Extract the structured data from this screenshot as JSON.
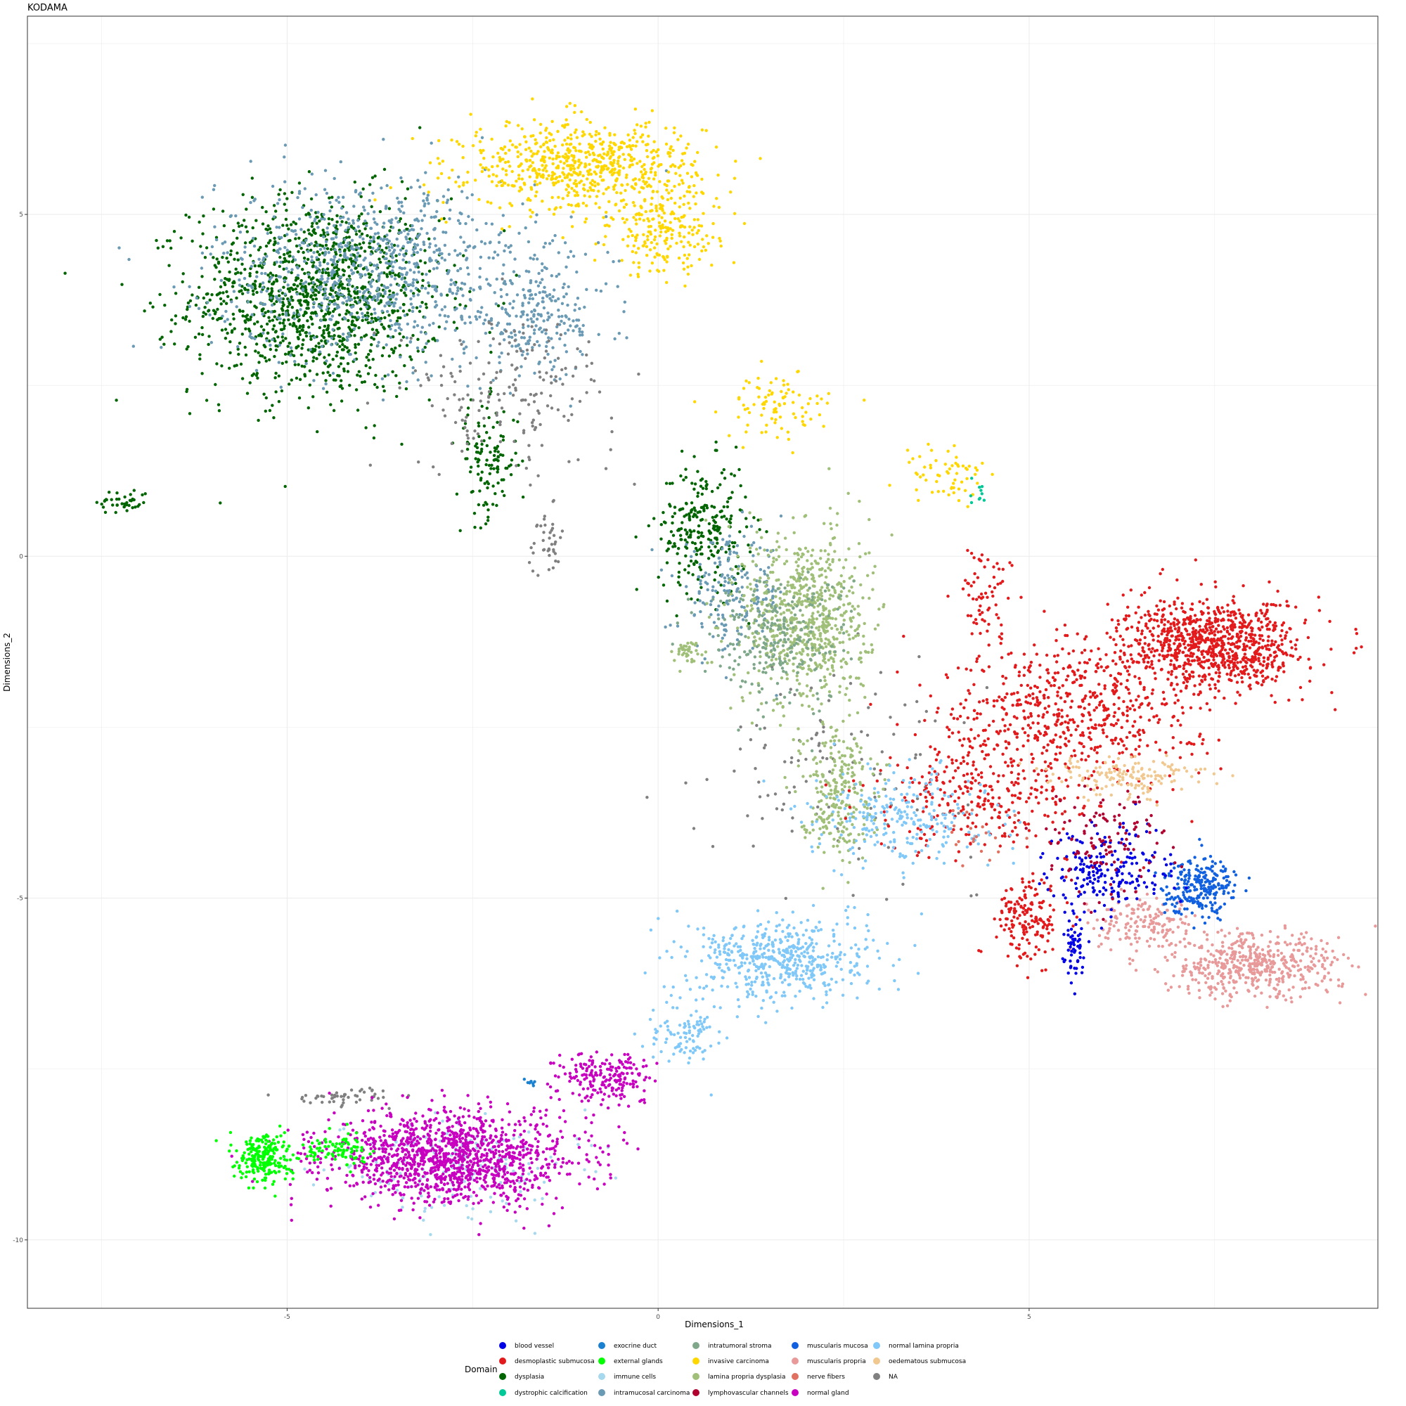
{
  "chart_data": {
    "type": "scatter",
    "title": "KODAMA",
    "xlabel": "Dimensions_1",
    "ylabel": "Dimensions_2",
    "xlim": [
      -8.5,
      9.7
    ],
    "ylim": [
      -11.0,
      7.9
    ],
    "xticks": [
      {
        "v": -5,
        "label": "-5"
      },
      {
        "v": 0,
        "label": "0"
      },
      {
        "v": 5,
        "label": "5"
      }
    ],
    "yticks": [
      {
        "v": 5,
        "label": "5"
      },
      {
        "v": 0,
        "label": "0"
      },
      {
        "v": -5,
        "label": "-5"
      },
      {
        "v": -10,
        "label": "-10"
      }
    ],
    "grid": true,
    "legend": {
      "title": "Domain",
      "placement": "bottom",
      "entries": [
        {
          "label": "blood vessel",
          "color": "#0000e6"
        },
        {
          "label": "desmoplastic submucosa",
          "color": "#e31a1c"
        },
        {
          "label": "dysplasia",
          "color": "#006400"
        },
        {
          "label": "dystrophic calcification",
          "color": "#00c896"
        },
        {
          "label": "exocrine duct",
          "color": "#1a80d0"
        },
        {
          "label": "external glands",
          "color": "#00ff00"
        },
        {
          "label": "immune cells",
          "color": "#a6d8ee"
        },
        {
          "label": "intramucosal carcinoma",
          "color": "#6a9ab4"
        },
        {
          "label": "intratumoral stroma",
          "color": "#7fa88a"
        },
        {
          "label": "invasive carcinoma",
          "color": "#ffd700"
        },
        {
          "label": "lamina propria dysplasia",
          "color": "#a0bf78"
        },
        {
          "label": "lymphovascular channels",
          "color": "#b00030"
        },
        {
          "label": "muscularis mucosa",
          "color": "#1060e0"
        },
        {
          "label": "muscularis propria",
          "color": "#e89a9a"
        },
        {
          "label": "nerve fibers",
          "color": "#e07060"
        },
        {
          "label": "normal gland",
          "color": "#c800c0"
        },
        {
          "label": "normal lamina propria",
          "color": "#80c8f8"
        },
        {
          "label": "oedematous submucosa",
          "color": "#f0c890"
        },
        {
          "label": "NA",
          "color": "#808080"
        }
      ]
    },
    "series": [
      {
        "name": "dysplasia",
        "color": "#006400",
        "clusters": [
          {
            "cx": -4.6,
            "cy": 3.8,
            "sx": 1.4,
            "sy": 1.2,
            "n": 1300
          },
          {
            "cx": -2.3,
            "cy": 1.4,
            "sx": 0.35,
            "sy": 0.7,
            "n": 120
          },
          {
            "cx": -7.2,
            "cy": 0.8,
            "sx": 0.3,
            "sy": 0.15,
            "n": 40
          },
          {
            "cx": 0.6,
            "cy": 0.4,
            "sx": 0.5,
            "sy": 0.8,
            "n": 260
          }
        ]
      },
      {
        "name": "intramucosal carcinoma",
        "color": "#6a9ab4",
        "clusters": [
          {
            "cx": -3.8,
            "cy": 4.2,
            "sx": 1.8,
            "sy": 1.1,
            "n": 900
          },
          {
            "cx": -1.6,
            "cy": 3.5,
            "sx": 0.8,
            "sy": 0.7,
            "n": 220
          },
          {
            "cx": 1.0,
            "cy": -0.6,
            "sx": 0.6,
            "sy": 0.7,
            "n": 200
          }
        ]
      },
      {
        "name": "invasive carcinoma",
        "color": "#ffd700",
        "clusters": [
          {
            "cx": -1.0,
            "cy": 5.7,
            "sx": 1.3,
            "sy": 0.55,
            "n": 700
          },
          {
            "cx": 0.1,
            "cy": 4.7,
            "sx": 0.6,
            "sy": 0.5,
            "n": 200
          },
          {
            "cx": 1.6,
            "cy": 2.2,
            "sx": 0.6,
            "sy": 0.4,
            "n": 90
          },
          {
            "cx": 3.9,
            "cy": 1.2,
            "sx": 0.5,
            "sy": 0.4,
            "n": 60
          }
        ]
      },
      {
        "name": "NA",
        "color": "#808080",
        "clusters": [
          {
            "cx": -2.0,
            "cy": 2.4,
            "sx": 1.2,
            "sy": 0.9,
            "n": 180
          },
          {
            "cx": -1.5,
            "cy": 0.2,
            "sx": 0.2,
            "sy": 0.4,
            "n": 40
          },
          {
            "cx": -4.2,
            "cy": -7.9,
            "sx": 0.6,
            "sy": 0.1,
            "n": 50
          },
          {
            "cx": 2.5,
            "cy": -3.0,
            "sx": 1.5,
            "sy": 1.2,
            "n": 120
          }
        ]
      },
      {
        "name": "lamina propria dysplasia",
        "color": "#a0bf78",
        "clusters": [
          {
            "cx": 2.0,
            "cy": -0.9,
            "sx": 0.7,
            "sy": 1.1,
            "n": 700
          },
          {
            "cx": 2.4,
            "cy": -3.4,
            "sx": 0.4,
            "sy": 0.8,
            "n": 250
          },
          {
            "cx": 0.4,
            "cy": -1.4,
            "sx": 0.25,
            "sy": 0.15,
            "n": 40
          }
        ]
      },
      {
        "name": "intratumoral stroma",
        "color": "#7fa88a",
        "clusters": [
          {
            "cx": 1.6,
            "cy": -1.2,
            "sx": 0.8,
            "sy": 0.8,
            "n": 250
          }
        ]
      },
      {
        "name": "desmoplastic submucosa",
        "color": "#e31a1c",
        "clusters": [
          {
            "cx": 7.5,
            "cy": -1.3,
            "sx": 1.0,
            "sy": 0.55,
            "n": 900
          },
          {
            "cx": 5.6,
            "cy": -2.2,
            "sx": 1.4,
            "sy": 0.9,
            "n": 600
          },
          {
            "cx": 4.5,
            "cy": -3.5,
            "sx": 1.4,
            "sy": 0.7,
            "n": 300
          },
          {
            "cx": 5.0,
            "cy": -5.3,
            "sx": 0.35,
            "sy": 0.5,
            "n": 160
          },
          {
            "cx": 4.4,
            "cy": -0.6,
            "sx": 0.3,
            "sy": 0.6,
            "n": 60
          }
        ]
      },
      {
        "name": "oedematous submucosa",
        "color": "#f0c890",
        "clusters": [
          {
            "cx": 6.3,
            "cy": -3.2,
            "sx": 0.9,
            "sy": 0.25,
            "n": 150
          }
        ]
      },
      {
        "name": "muscularis propria",
        "color": "#e89a9a",
        "clusters": [
          {
            "cx": 8.0,
            "cy": -6.0,
            "sx": 1.0,
            "sy": 0.4,
            "n": 500
          },
          {
            "cx": 6.6,
            "cy": -5.4,
            "sx": 0.6,
            "sy": 0.3,
            "n": 150
          }
        ]
      },
      {
        "name": "muscularis mucosa",
        "color": "#1060e0",
        "clusters": [
          {
            "cx": 7.3,
            "cy": -4.8,
            "sx": 0.4,
            "sy": 0.35,
            "n": 250
          }
        ]
      },
      {
        "name": "blood vessel",
        "color": "#0000e6",
        "clusters": [
          {
            "cx": 6.1,
            "cy": -4.6,
            "sx": 0.7,
            "sy": 0.5,
            "n": 200
          },
          {
            "cx": 5.6,
            "cy": -5.7,
            "sx": 0.12,
            "sy": 0.5,
            "n": 60
          }
        ]
      },
      {
        "name": "lymphovascular channels",
        "color": "#b00030",
        "clusters": [
          {
            "cx": 6.0,
            "cy": -4.2,
            "sx": 0.7,
            "sy": 0.6,
            "n": 120
          }
        ]
      },
      {
        "name": "normal lamina propria",
        "color": "#80c8f8",
        "clusters": [
          {
            "cx": 1.7,
            "cy": -5.9,
            "sx": 1.0,
            "sy": 0.5,
            "n": 500
          },
          {
            "cx": 3.3,
            "cy": -3.8,
            "sx": 1.0,
            "sy": 0.6,
            "n": 250
          },
          {
            "cx": 0.4,
            "cy": -7.0,
            "sx": 0.4,
            "sy": 0.4,
            "n": 100
          }
        ]
      },
      {
        "name": "immune cells",
        "color": "#a6d8ee",
        "clusters": [
          {
            "cx": -2.8,
            "cy": -8.9,
            "sx": 1.4,
            "sy": 0.6,
            "n": 180
          }
        ]
      },
      {
        "name": "normal gland",
        "color": "#c800c0",
        "clusters": [
          {
            "cx": -2.8,
            "cy": -8.8,
            "sx": 1.4,
            "sy": 0.55,
            "n": 1300
          },
          {
            "cx": -0.7,
            "cy": -7.6,
            "sx": 0.5,
            "sy": 0.3,
            "n": 200
          }
        ]
      },
      {
        "name": "external glands",
        "color": "#00ff00",
        "clusters": [
          {
            "cx": -5.3,
            "cy": -8.8,
            "sx": 0.3,
            "sy": 0.3,
            "n": 220
          },
          {
            "cx": -4.4,
            "cy": -8.7,
            "sx": 0.5,
            "sy": 0.2,
            "n": 100
          }
        ]
      },
      {
        "name": "exocrine duct",
        "color": "#1a80d0",
        "clusters": [
          {
            "cx": -1.7,
            "cy": -7.7,
            "sx": 0.05,
            "sy": 0.04,
            "n": 8
          }
        ]
      },
      {
        "name": "dystrophic calcification",
        "color": "#00c896",
        "clusters": [
          {
            "cx": 4.3,
            "cy": 0.9,
            "sx": 0.1,
            "sy": 0.2,
            "n": 10
          }
        ]
      },
      {
        "name": "nerve fibers",
        "color": "#e07060",
        "clusters": [
          {
            "cx": 4.3,
            "cy": -4.0,
            "sx": 0.5,
            "sy": 0.4,
            "n": 20
          }
        ]
      }
    ]
  }
}
